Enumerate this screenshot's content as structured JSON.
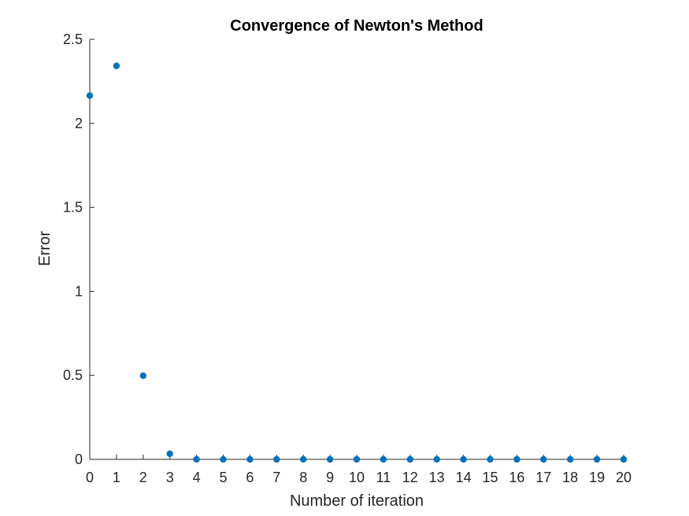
{
  "chart_data": {
    "type": "scatter",
    "title": "Convergence of Newton's Method",
    "xlabel": "Number of iteration",
    "ylabel": "Error",
    "xlim": [
      0,
      20
    ],
    "ylim": [
      0,
      2.5
    ],
    "xticks": [
      "0",
      "1",
      "2",
      "3",
      "4",
      "5",
      "6",
      "7",
      "8",
      "9",
      "10",
      "11",
      "12",
      "13",
      "14",
      "15",
      "16",
      "17",
      "18",
      "19",
      "20"
    ],
    "yticks": [
      "0",
      "0.5",
      "1",
      "1.5",
      "2",
      "2.5"
    ],
    "grid": false,
    "x": [
      0,
      1,
      2,
      3,
      4,
      5,
      6,
      7,
      8,
      9,
      10,
      11,
      12,
      13,
      14,
      15,
      16,
      17,
      18,
      19,
      20
    ],
    "y": [
      2.165,
      2.342,
      0.498,
      0.033,
      0.0002,
      0,
      0,
      0,
      0,
      0,
      0,
      0,
      0,
      0,
      0,
      0,
      0,
      0,
      0,
      0,
      0
    ],
    "marker_color": "#0072BD"
  }
}
